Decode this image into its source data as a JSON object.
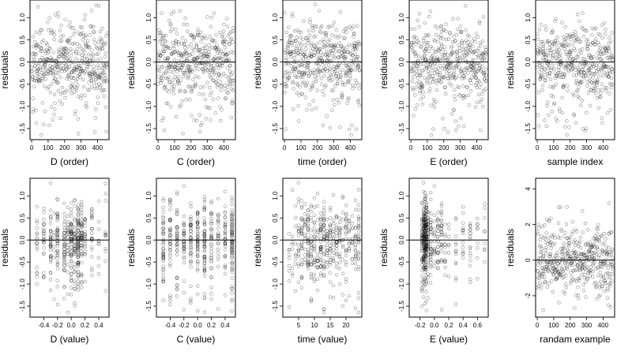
{
  "figure": {
    "layout": "2x5 grid of residual plots"
  },
  "chart_data": [
    {
      "type": "scatter",
      "xlabel": "D (order)",
      "ylabel": "residuals",
      "xlim": [
        -10,
        470
      ],
      "ylim": [
        -1.75,
        1.4
      ],
      "xticks": [
        0,
        100,
        200,
        300,
        400
      ],
      "xtick_labels": [
        "0",
        "100",
        "200",
        "300",
        "400"
      ],
      "yticks": [
        -1.5,
        -1,
        -0.5,
        0,
        0.5,
        1
      ],
      "ytick_labels": [
        "-1.5",
        "-1.0",
        "-0.5",
        "0.0",
        "0.5",
        "1.0"
      ],
      "reference_line": 0,
      "x_kind": "index",
      "n": 460,
      "seed": 11
    },
    {
      "type": "scatter",
      "xlabel": "C (order)",
      "ylabel": "residuals",
      "xlim": [
        -10,
        470
      ],
      "ylim": [
        -1.75,
        1.4
      ],
      "xticks": [
        0,
        100,
        200,
        300,
        400
      ],
      "xtick_labels": [
        "0",
        "100",
        "200",
        "300",
        "400"
      ],
      "yticks": [
        -1.5,
        -1,
        -0.5,
        0,
        0.5,
        1
      ],
      "ytick_labels": [
        "-1.5",
        "-1.0",
        "-0.5",
        "0.0",
        "0.5",
        "1.0"
      ],
      "reference_line": 0,
      "x_kind": "index",
      "n": 460,
      "seed": 23
    },
    {
      "type": "scatter",
      "xlabel": "time (order)",
      "ylabel": "residuals",
      "xlim": [
        -10,
        470
      ],
      "ylim": [
        -1.75,
        1.4
      ],
      "xticks": [
        0,
        100,
        200,
        300,
        400
      ],
      "xtick_labels": [
        "0",
        "100",
        "200",
        "300",
        "400"
      ],
      "yticks": [
        -1.5,
        -1,
        -0.5,
        0,
        0.5,
        1
      ],
      "ytick_labels": [
        "-1.5",
        "-1.0",
        "-0.5",
        "0.0",
        "0.5",
        "1.0"
      ],
      "reference_line": 0,
      "x_kind": "index",
      "n": 460,
      "seed": 37
    },
    {
      "type": "scatter",
      "xlabel": "E (order)",
      "ylabel": "residuals",
      "xlim": [
        -10,
        470
      ],
      "ylim": [
        -1.75,
        1.4
      ],
      "xticks": [
        0,
        100,
        200,
        300,
        400
      ],
      "xtick_labels": [
        "0",
        "100",
        "200",
        "300",
        "400"
      ],
      "yticks": [
        -1.5,
        -1,
        -0.5,
        0,
        0.5,
        1
      ],
      "ytick_labels": [
        "-1.5",
        "-1.0",
        "-0.5",
        "0.0",
        "0.5",
        "1.0"
      ],
      "reference_line": 0,
      "x_kind": "index",
      "n": 460,
      "seed": 41
    },
    {
      "type": "scatter",
      "xlabel": "sample index",
      "ylabel": "residuals",
      "xlim": [
        -10,
        470
      ],
      "ylim": [
        -1.75,
        1.4
      ],
      "xticks": [
        0,
        100,
        200,
        300,
        400
      ],
      "xtick_labels": [
        "0",
        "100",
        "200",
        "300",
        "400"
      ],
      "yticks": [
        -1.5,
        -1,
        -0.5,
        0,
        0.5,
        1
      ],
      "ytick_labels": [
        "-1.5",
        "-1.0",
        "-0.5",
        "0.0",
        "0.5",
        "1.0"
      ],
      "reference_line": 0,
      "x_kind": "index",
      "n": 460,
      "seed": 53
    },
    {
      "type": "scatter",
      "xlabel": "D (value)",
      "ylabel": "residuals",
      "xlim": [
        -0.6,
        0.55
      ],
      "ylim": [
        -1.75,
        1.4
      ],
      "xticks": [
        -0.4,
        -0.2,
        0,
        0.2,
        0.4
      ],
      "xtick_labels": [
        "-0.4",
        "-0.2",
        "0.0",
        "0.2",
        "0.4"
      ],
      "yticks": [
        -1.5,
        -1,
        -0.5,
        0,
        0.5,
        1
      ],
      "ytick_labels": [
        "-1.5",
        "-1.0",
        "-0.5",
        "0.0",
        "0.5",
        "1.0"
      ],
      "reference_line": 0,
      "x_kind": "value",
      "x_levels": [
        -0.5,
        -0.4,
        -0.3,
        -0.25,
        -0.2,
        -0.1,
        -0.05,
        0,
        0.05,
        0.1,
        0.15,
        0.2,
        0.3,
        0.4,
        0.5
      ],
      "x_weights": [
        1,
        2,
        2,
        1,
        3,
        3,
        2,
        4,
        3,
        7,
        3,
        2,
        2,
        1,
        1
      ],
      "n": 460,
      "seed": 61
    },
    {
      "type": "scatter",
      "xlabel": "C (value)",
      "ylabel": "residuals",
      "xlim": [
        -0.6,
        0.55
      ],
      "ylim": [
        -1.75,
        1.4
      ],
      "xticks": [
        -0.4,
        -0.2,
        0,
        0.2,
        0.4
      ],
      "xtick_labels": [
        "-0.4",
        "-0.2",
        "0.0",
        "0.2",
        "0.4"
      ],
      "yticks": [
        -1.5,
        -1,
        -0.5,
        0,
        0.5,
        1
      ],
      "ytick_labels": [
        "-1.5",
        "-1.0",
        "-0.5",
        "0.0",
        "0.5",
        "1.0"
      ],
      "reference_line": 0,
      "x_kind": "value",
      "x_levels": [
        -0.5,
        -0.4,
        -0.3,
        -0.2,
        -0.1,
        0,
        0.1,
        0.2,
        0.3,
        0.4,
        0.5
      ],
      "x_weights": [
        3,
        2,
        2,
        2,
        3,
        3,
        3,
        2,
        2,
        2,
        4
      ],
      "n": 460,
      "seed": 71
    },
    {
      "type": "scatter",
      "xlabel": "time (value)",
      "ylabel": "residuals",
      "xlim": [
        0,
        25
      ],
      "ylim": [
        -1.75,
        1.4
      ],
      "xticks": [
        5,
        10,
        15,
        20
      ],
      "xtick_labels": [
        "5",
        "10",
        "15",
        "20"
      ],
      "yticks": [
        -1.5,
        -1,
        -0.5,
        0,
        0.5,
        1
      ],
      "ytick_labels": [
        "-1.5",
        "-1.0",
        "-0.5",
        "0.0",
        "0.5",
        "1.0"
      ],
      "reference_line": 0,
      "x_kind": "value",
      "x_levels": [
        2,
        3,
        4,
        5,
        6,
        7,
        8,
        9,
        10,
        11,
        12,
        13,
        14,
        15,
        16,
        17,
        18,
        19,
        20,
        21,
        22,
        23,
        24
      ],
      "x_weights": [
        1,
        1,
        1,
        2,
        2,
        2,
        3,
        3,
        3,
        2,
        5,
        3,
        2,
        3,
        2,
        2,
        2,
        2,
        2,
        2,
        2,
        2,
        3
      ],
      "n": 460,
      "seed": 83
    },
    {
      "type": "scatter",
      "xlabel": "E (value)",
      "ylabel": "residuals",
      "xlim": [
        -0.35,
        0.75
      ],
      "ylim": [
        -1.75,
        1.4
      ],
      "xticks": [
        -0.2,
        0,
        0.2,
        0.4,
        0.6
      ],
      "xtick_labels": [
        "-0.2",
        "0.0",
        "0.2",
        "0.4",
        "0.6"
      ],
      "yticks": [
        -1.5,
        -1,
        -0.5,
        0,
        0.5,
        1
      ],
      "ytick_labels": [
        "-1.5",
        "-1.0",
        "-0.5",
        "0.0",
        "0.5",
        "1.0"
      ],
      "reference_line": 0,
      "x_kind": "value",
      "x_levels": [
        -0.17,
        -0.15,
        -0.13,
        -0.11,
        -0.09,
        -0.05,
        0,
        0.05,
        0.1,
        0.15,
        0.2,
        0.3,
        0.4,
        0.5,
        0.6,
        0.7
      ],
      "x_weights": [
        3,
        6,
        8,
        6,
        3,
        3,
        2,
        2,
        2,
        1,
        1,
        1,
        1,
        1,
        1,
        1
      ],
      "n": 460,
      "seed": 97
    },
    {
      "type": "scatter",
      "xlabel": "randam example",
      "ylabel": "residuals",
      "xlim": [
        -10,
        470
      ],
      "ylim": [
        -3.2,
        4.6
      ],
      "xticks": [
        0,
        100,
        200,
        300,
        400
      ],
      "xtick_labels": [
        "0",
        "100",
        "200",
        "300",
        "400"
      ],
      "yticks": [
        -2,
        0,
        2,
        4
      ],
      "ytick_labels": [
        "-2",
        "0",
        "2",
        "4"
      ],
      "reference_line": 0,
      "x_kind": "index",
      "n": 460,
      "seed": 107
    }
  ]
}
